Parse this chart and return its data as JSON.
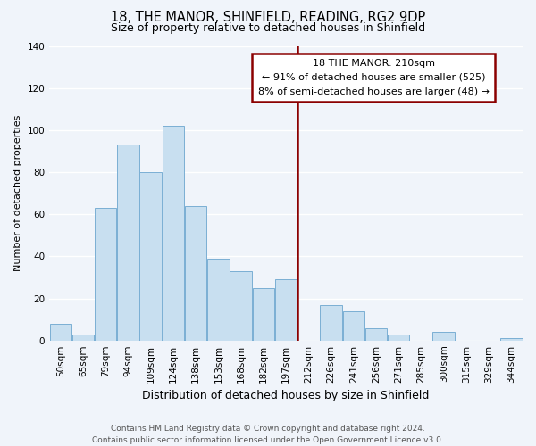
{
  "title": "18, THE MANOR, SHINFIELD, READING, RG2 9DP",
  "subtitle": "Size of property relative to detached houses in Shinfield",
  "xlabel": "Distribution of detached houses by size in Shinfield",
  "ylabel": "Number of detached properties",
  "bin_labels": [
    "50sqm",
    "65sqm",
    "79sqm",
    "94sqm",
    "109sqm",
    "124sqm",
    "138sqm",
    "153sqm",
    "168sqm",
    "182sqm",
    "197sqm",
    "212sqm",
    "226sqm",
    "241sqm",
    "256sqm",
    "271sqm",
    "285sqm",
    "300sqm",
    "315sqm",
    "329sqm",
    "344sqm"
  ],
  "bar_heights": [
    8,
    3,
    63,
    93,
    80,
    102,
    64,
    39,
    33,
    25,
    29,
    0,
    17,
    14,
    6,
    3,
    0,
    4,
    0,
    0,
    1
  ],
  "bar_color": "#c8dff0",
  "bar_edge_color": "#7aafd4",
  "vline_color": "#8b0000",
  "annotation_title": "18 THE MANOR: 210sqm",
  "annotation_line1": "← 91% of detached houses are smaller (525)",
  "annotation_line2": "8% of semi-detached houses are larger (48) →",
  "ylim": [
    0,
    140
  ],
  "yticks": [
    0,
    20,
    40,
    60,
    80,
    100,
    120,
    140
  ],
  "footer_line1": "Contains HM Land Registry data © Crown copyright and database right 2024.",
  "footer_line2": "Contains public sector information licensed under the Open Government Licence v3.0.",
  "bg_color": "#f0f4fa",
  "grid_color": "#ffffff",
  "title_fontsize": 10.5,
  "subtitle_fontsize": 9,
  "ylabel_fontsize": 8,
  "xlabel_fontsize": 9,
  "tick_fontsize": 7.5,
  "footer_fontsize": 6.5,
  "annot_fontsize": 8
}
